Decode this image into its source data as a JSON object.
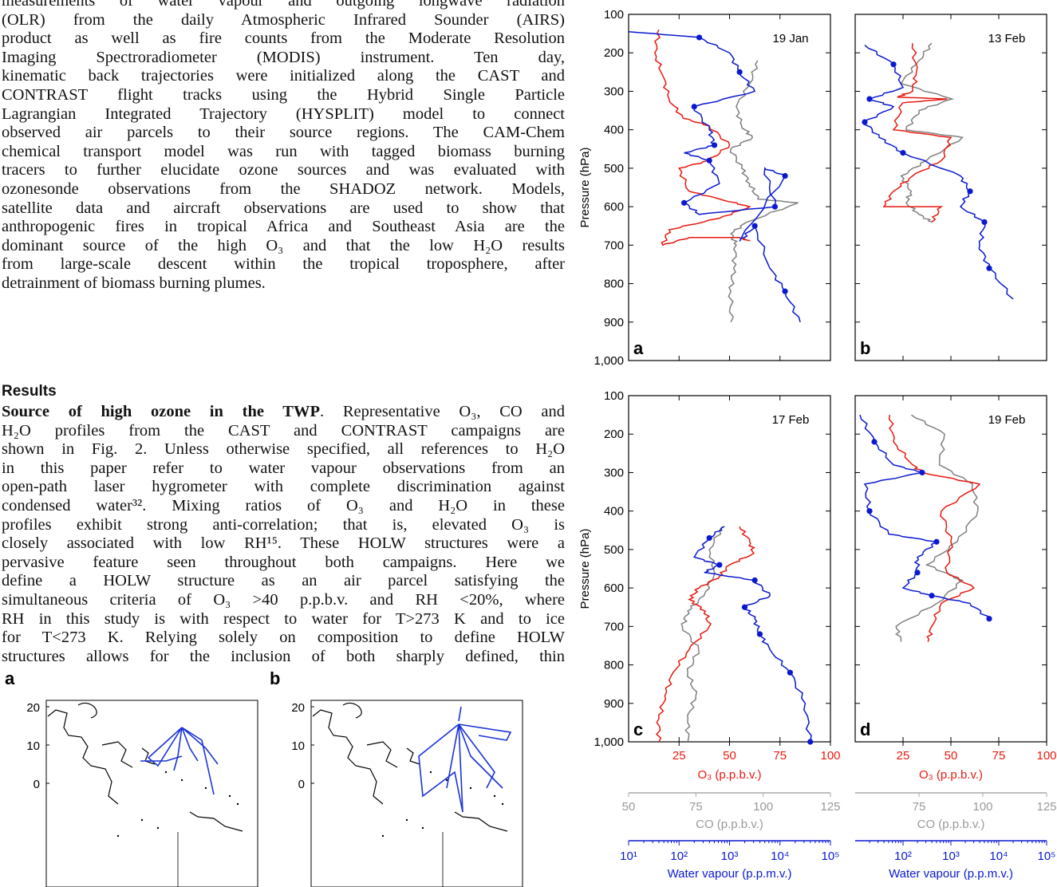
{
  "body_text": {
    "intro_paragraph": [
      "measurements of water vapour and outgoing longwave radiation",
      "(OLR) from the daily Atmospheric Infrared Sounder (AIRS)",
      "product as well as fire counts from the Moderate Resolution",
      "Imaging Spectroradiometer (MODIS) instrument. Ten day,",
      "kinematic back trajectories were initialized along the CAST and",
      "CONTRAST flight tracks using the Hybrid Single Particle",
      "Lagrangian Integrated Trajectory (HYSPLIT) model to connect",
      "observed air parcels to their source regions. The CAM-Chem",
      "chemical transport model was run with tagged biomass burning",
      "tracers to further elucidate ozone sources and was evaluated with",
      "ozonesonde observations from the SHADOZ network. Models,",
      "satellite data and aircraft observations are used to show that",
      "anthropogenic fires in tropical Africa and Southeast Asia are the",
      "dominant source of the high O₃ and that the low H₂O results",
      "from large-scale descent within the tropical troposphere, after",
      "detrainment of biomass burning plumes."
    ],
    "results_heading": "Results",
    "results_subheading": "Source of high ozone in the TWP",
    "results_paragraph": [
      ". Representative O₃, CO and",
      "H₂O profiles from the CAST and CONTRAST campaigns are",
      "shown in Fig. 2. Unless otherwise specified, all references to H₂O",
      "in this paper refer to water vapour observations from an",
      "open-path laser hygrometer with complete discrimination against",
      "condensed water³². Mixing ratios of O₃ and H₂O in these",
      "profiles exhibit strong anti-correlation; that is, elevated O₃ is",
      "closely associated with low RH¹⁵. These HOLW structures were a",
      "pervasive feature seen throughout both campaigns. Here we",
      "define a HOLW structure as an air parcel satisfying the",
      "simultaneous criteria of O₃ >40 p.p.b.v. and RH <20%, where",
      "RH in this study is with respect to water for T>273 K and to ice",
      "for T<273 K. Relying solely on composition to define HOLW",
      "structures allows for the inclusion of both sharply defined, thin"
    ]
  },
  "figure": {
    "colors": {
      "o3": "#e8190f",
      "co": "#808080",
      "h2o": "#0a19d0",
      "axis": "#000000"
    },
    "y_axis_label": "Pressure (hPa)",
    "y_ticks": [
      "100",
      "200",
      "300",
      "400",
      "500",
      "600",
      "700",
      "800",
      "900",
      "1,000"
    ],
    "o3_label": "O₃ (p.p.b.v.)",
    "o3_ticks": [
      "25",
      "50",
      "75",
      "100"
    ],
    "co_label": "CO (p.p.b.v.)",
    "co_ticks_left": [
      "50",
      "75",
      "100",
      "125"
    ],
    "co_ticks_right": [
      "75",
      "100",
      "125"
    ],
    "wv_label": "Water vapour (p.p.m.v.)",
    "wv_ticks_left": [
      "10¹",
      "10²",
      "10³",
      "10⁴",
      "10⁵"
    ],
    "wv_ticks_right": [
      "10²",
      "10³",
      "10⁴",
      "10⁵"
    ],
    "panels": [
      {
        "letter": "a",
        "date": "19 Jan"
      },
      {
        "letter": "b",
        "date": "13 Feb"
      },
      {
        "letter": "c",
        "date": "17 Feb"
      },
      {
        "letter": "d",
        "date": "19 Feb"
      }
    ]
  },
  "chart_data": [
    {
      "type": "line",
      "panel": "a",
      "ylim": [
        1000,
        100
      ],
      "o3_xlim": [
        0,
        100
      ],
      "co_xlim": [
        50,
        125
      ],
      "wv_xlim_log10": [
        1,
        5
      ],
      "series": [
        {
          "name": "O₃",
          "points": [
            [
              15,
              140
            ],
            [
              13,
              200
            ],
            [
              17,
              260
            ],
            [
              20,
              320
            ],
            [
              27,
              370
            ],
            [
              40,
              390
            ],
            [
              50,
              440
            ],
            [
              40,
              480
            ],
            [
              25,
              500
            ],
            [
              30,
              560
            ],
            [
              45,
              580
            ],
            [
              60,
              600
            ],
            [
              45,
              630
            ],
            [
              20,
              660
            ],
            [
              17,
              700
            ],
            [
              30,
              680
            ],
            [
              55,
              680
            ],
            [
              60,
              690
            ]
          ]
        },
        {
          "name": "CO",
          "points": [
            [
              98,
              220
            ],
            [
              95,
              280
            ],
            [
              90,
              340
            ],
            [
              92,
              390
            ],
            [
              96,
              420
            ],
            [
              88,
              450
            ],
            [
              92,
              500
            ],
            [
              95,
              540
            ],
            [
              98,
              580
            ],
            [
              113,
              590
            ],
            [
              94,
              640
            ],
            [
              88,
              670
            ],
            [
              90,
              700
            ],
            [
              89,
              760
            ],
            [
              88,
              820
            ],
            [
              88,
              900
            ]
          ]
        },
        {
          "name": "Water vapour",
          "points": [
            [
              1.0,
              145
            ],
            [
              2.4,
              160
            ],
            [
              3.0,
              200
            ],
            [
              3.2,
              250
            ],
            [
              3.5,
              300
            ],
            [
              2.3,
              340
            ],
            [
              2.6,
              400
            ],
            [
              2.7,
              440
            ],
            [
              2.1,
              460
            ],
            [
              2.6,
              480
            ],
            [
              2.8,
              540
            ],
            [
              2.1,
              590
            ],
            [
              2.4,
              620
            ],
            [
              3.9,
              600
            ],
            [
              3.7,
              500
            ],
            [
              4.1,
              520
            ],
            [
              3.2,
              690
            ],
            [
              3.5,
              650
            ],
            [
              3.8,
              760
            ],
            [
              4.1,
              820
            ],
            [
              4.4,
              900
            ]
          ]
        }
      ]
    },
    {
      "type": "line",
      "panel": "b",
      "ylim": [
        1000,
        100
      ],
      "o3_xlim": [
        0,
        100
      ],
      "co_xlim": [
        50,
        125
      ],
      "wv_xlim_log10": [
        1,
        5
      ],
      "series": [
        {
          "name": "O₃",
          "points": [
            [
              30,
              175
            ],
            [
              32,
              250
            ],
            [
              30,
              300
            ],
            [
              22,
              315
            ],
            [
              48,
              320
            ],
            [
              25,
              330
            ],
            [
              20,
              400
            ],
            [
              50,
              420
            ],
            [
              45,
              480
            ],
            [
              30,
              520
            ],
            [
              20,
              560
            ],
            [
              15,
              600
            ],
            [
              45,
              600
            ],
            [
              40,
              640
            ]
          ]
        },
        {
          "name": "CO",
          "points": [
            [
              80,
              175
            ],
            [
              75,
              220
            ],
            [
              68,
              280
            ],
            [
              88,
              320
            ],
            [
              75,
              350
            ],
            [
              70,
              400
            ],
            [
              92,
              420
            ],
            [
              78,
              480
            ],
            [
              68,
              520
            ],
            [
              72,
              560
            ],
            [
              70,
              590
            ],
            [
              75,
              620
            ],
            [
              80,
              640
            ]
          ]
        },
        {
          "name": "Water vapour",
          "points": [
            [
              1.2,
              180
            ],
            [
              1.8,
              230
            ],
            [
              2.0,
              290
            ],
            [
              1.3,
              320
            ],
            [
              1.8,
              340
            ],
            [
              1.2,
              380
            ],
            [
              1.5,
              420
            ],
            [
              2.0,
              460
            ],
            [
              3.2,
              520
            ],
            [
              3.4,
              560
            ],
            [
              3.2,
              600
            ],
            [
              3.7,
              640
            ],
            [
              3.6,
              700
            ],
            [
              3.8,
              760
            ],
            [
              4.3,
              840
            ]
          ]
        }
      ]
    },
    {
      "type": "line",
      "panel": "c",
      "ylim": [
        1000,
        100
      ],
      "o3_xlim": [
        0,
        100
      ],
      "co_xlim": [
        50,
        125
      ],
      "wv_xlim_log10": [
        1,
        5
      ],
      "series": [
        {
          "name": "O₃",
          "points": [
            [
              55,
              440
            ],
            [
              60,
              480
            ],
            [
              62,
              510
            ],
            [
              50,
              540
            ],
            [
              45,
              570
            ],
            [
              35,
              600
            ],
            [
              30,
              630
            ],
            [
              38,
              660
            ],
            [
              40,
              700
            ],
            [
              30,
              760
            ],
            [
              22,
              820
            ],
            [
              18,
              880
            ],
            [
              15,
              940
            ],
            [
              15,
              1000
            ]
          ]
        },
        {
          "name": "CO",
          "points": [
            [
              85,
              440
            ],
            [
              80,
              500
            ],
            [
              82,
              560
            ],
            [
              78,
              620
            ],
            [
              72,
              660
            ],
            [
              70,
              700
            ],
            [
              76,
              760
            ],
            [
              72,
              820
            ],
            [
              75,
              880
            ],
            [
              72,
              940
            ],
            [
              72,
              1000
            ]
          ]
        },
        {
          "name": "Water vapour",
          "points": [
            [
              2.9,
              440
            ],
            [
              2.6,
              470
            ],
            [
              2.3,
              520
            ],
            [
              2.8,
              540
            ],
            [
              2.5,
              560
            ],
            [
              3.5,
              580
            ],
            [
              3.8,
              620
            ],
            [
              3.3,
              650
            ],
            [
              3.5,
              680
            ],
            [
              3.6,
              720
            ],
            [
              3.8,
              760
            ],
            [
              4.2,
              820
            ],
            [
              4.5,
              900
            ],
            [
              4.6,
              1000
            ]
          ]
        }
      ]
    },
    {
      "type": "line",
      "panel": "d",
      "ylim": [
        1000,
        100
      ],
      "o3_xlim": [
        0,
        100
      ],
      "co_xlim": [
        50,
        125
      ],
      "wv_xlim_log10": [
        1,
        5
      ],
      "series": [
        {
          "name": "O₃",
          "points": [
            [
              18,
              150
            ],
            [
              20,
              220
            ],
            [
              30,
              280
            ],
            [
              35,
              300
            ],
            [
              65,
              330
            ],
            [
              45,
              400
            ],
            [
              50,
              480
            ],
            [
              48,
              560
            ],
            [
              62,
              600
            ],
            [
              45,
              640
            ],
            [
              40,
              700
            ],
            [
              38,
              740
            ]
          ]
        },
        {
          "name": "CO",
          "points": [
            [
              72,
              150
            ],
            [
              85,
              200
            ],
            [
              83,
              280
            ],
            [
              96,
              330
            ],
            [
              98,
              400
            ],
            [
              90,
              480
            ],
            [
              78,
              540
            ],
            [
              92,
              580
            ],
            [
              82,
              640
            ],
            [
              66,
              700
            ],
            [
              68,
              740
            ]
          ]
        },
        {
          "name": "Water vapour",
          "points": [
            [
              1.1,
              150
            ],
            [
              1.4,
              220
            ],
            [
              1.8,
              280
            ],
            [
              2.4,
              300
            ],
            [
              1.2,
              330
            ],
            [
              1.3,
              400
            ],
            [
              1.7,
              460
            ],
            [
              2.7,
              480
            ],
            [
              2.3,
              520
            ],
            [
              2.3,
              560
            ],
            [
              2.0,
              600
            ],
            [
              2.6,
              620
            ],
            [
              3.4,
              640
            ],
            [
              3.8,
              680
            ]
          ]
        }
      ]
    }
  ],
  "map_figure": {
    "panels": [
      {
        "letter": "a"
      },
      {
        "letter": "b"
      }
    ],
    "y_ticks": [
      "20",
      "10",
      "0"
    ],
    "track_color": "#1a33d6"
  }
}
